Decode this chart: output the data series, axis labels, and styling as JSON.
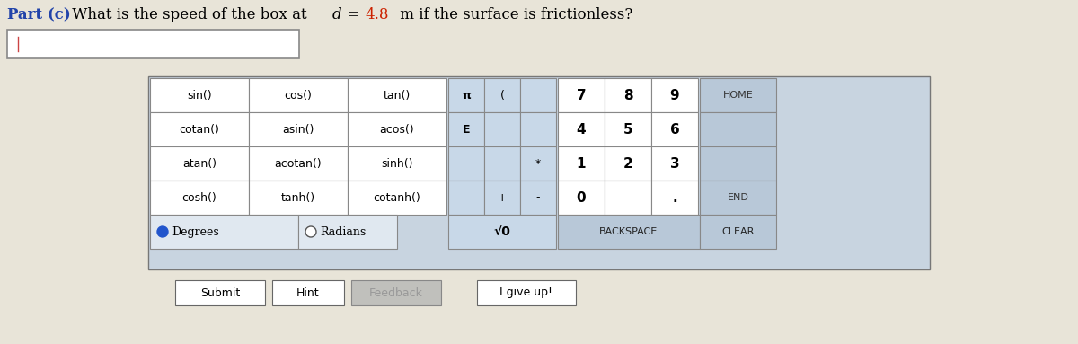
{
  "title_prefix": "Part (c)",
  "title_text": " What is the speed of the box at ",
  "title_d": "d",
  "title_eq": " = ",
  "title_val": "4.8",
  "title_unit": " m if the surface is frictionless?",
  "bg_color": "#e8e4d8",
  "light_cell": "#e0e8f0",
  "spec_cell": "#c8d8e8",
  "num_cell": "#e8f0f8",
  "dark_cell": "#b8c8d8",
  "right_cell": "#c0ccd8",
  "calc_bg": "#c8d4e0",
  "trig_rows": [
    [
      "sin()",
      "cos()",
      "tan()"
    ],
    [
      "cotan()",
      "asin()",
      "acos()"
    ],
    [
      "atan()",
      "acotan()",
      "sinh()"
    ],
    [
      "cosh()",
      "tanh()",
      "cotanh()"
    ]
  ],
  "button_rows": [
    {
      "trig": [
        "sin()",
        "cos()",
        "tan()"
      ],
      "s1": "π",
      "s2": "(",
      "s3": "",
      "nums": [
        "7",
        "8",
        "9"
      ],
      "right": "HOME"
    },
    {
      "trig": [
        "cotan()",
        "asin()",
        "acos()"
      ],
      "s1": "E",
      "s2": "",
      "s3": "",
      "nums": [
        "4",
        "5",
        "6"
      ],
      "right": ""
    },
    {
      "trig": [
        "atan()",
        "acotan()",
        "sinh()"
      ],
      "s1": "",
      "s2": "",
      "s3": "*",
      "nums": [
        "1",
        "2",
        "3"
      ],
      "right": ""
    },
    {
      "trig": [
        "cosh()",
        "tanh()",
        "cotanh()"
      ],
      "s1": "",
      "s2": "+",
      "s3": "-",
      "nums": [
        "0",
        "",
        "."
      ],
      "right": "END"
    }
  ],
  "degrees_label": "Degrees",
  "radians_label": "Radians",
  "sqrt_label": "√0",
  "backspace_label": "BACKSPACE",
  "clear_label": "CLEAR",
  "submit_label": "Submit",
  "hint_label": "Hint",
  "feedback_label": "Feedback",
  "giveup_label": "I give up!",
  "title_color": "#2244aa",
  "val_color": "#cc2200"
}
